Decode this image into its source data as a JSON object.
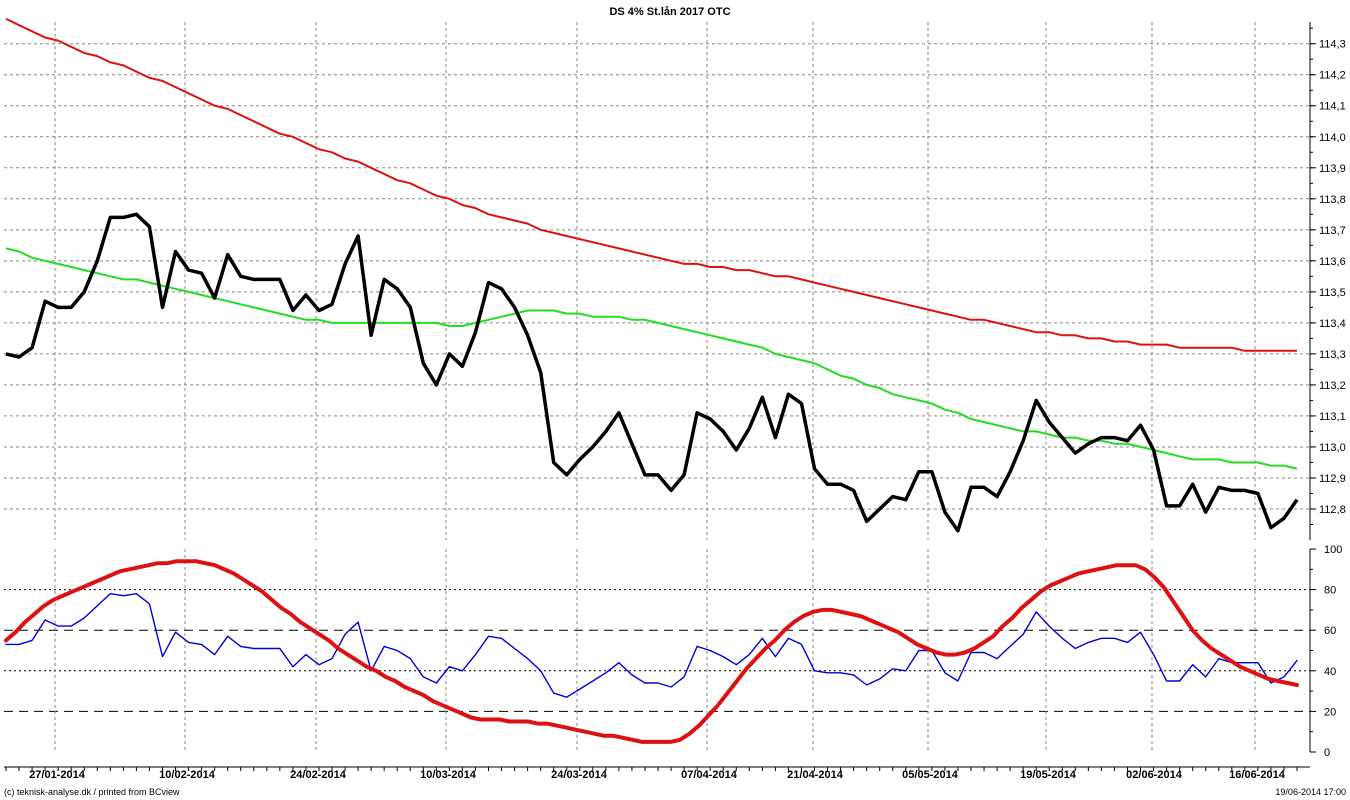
{
  "chart_data": [
    {
      "type": "line",
      "title": "DS 4% St.lån 2017 OTC",
      "ylim": [
        112.7,
        114.37
      ],
      "y_ticks": [
        "112,8",
        "112,9",
        "113,0",
        "113,1",
        "113,2",
        "113,3",
        "113,4",
        "113,5",
        "113,6",
        "113,7",
        "113,8",
        "113,9",
        "114,0",
        "114,1",
        "114,2",
        "114,3"
      ],
      "x_labels": [
        "27/01-2014",
        "10/02-2014",
        "24/02-2014",
        "10/03-2014",
        "24/03-2014",
        "07/04-2014",
        "21/04-2014",
        "05/05-2014",
        "19/05-2014",
        "02/06-2014",
        "16/06-2014"
      ],
      "grid": "dotted",
      "series": [
        {
          "color": "#000000",
          "values": [
            113.3,
            113.29,
            113.32,
            113.47,
            113.45,
            113.45,
            113.5,
            113.6,
            113.74,
            113.74,
            113.75,
            113.71,
            113.45,
            113.63,
            113.57,
            113.56,
            113.48,
            113.62,
            113.55,
            113.54,
            113.54,
            113.54,
            113.44,
            113.49,
            113.44,
            113.46,
            113.59,
            113.68,
            113.36,
            113.54,
            113.51,
            113.45,
            113.27,
            113.2,
            113.3,
            113.26,
            113.37,
            113.53,
            113.51,
            113.45,
            113.36,
            113.24,
            112.95,
            112.91,
            112.96,
            113.0,
            113.05,
            113.11,
            113.01,
            112.91,
            112.91,
            112.86,
            112.91,
            113.11,
            113.09,
            113.05,
            112.99,
            113.06,
            113.16,
            113.03,
            113.17,
            113.14,
            112.93,
            112.88,
            112.88,
            112.86,
            112.76,
            112.8,
            112.84,
            112.83,
            112.92,
            112.92,
            112.79,
            112.73,
            112.87,
            112.87,
            112.84,
            112.92,
            113.02,
            113.15,
            113.08,
            113.03,
            112.98,
            113.01,
            113.03,
            113.03,
            113.02,
            113.07,
            112.99,
            112.81,
            112.81,
            112.88,
            112.79,
            112.87,
            112.86,
            112.86,
            112.85,
            112.74,
            112.77,
            112.83
          ]
        },
        {
          "color": "#22dd22",
          "values": [
            113.64,
            113.63,
            113.61,
            113.6,
            113.59,
            113.58,
            113.57,
            113.56,
            113.55,
            113.54,
            113.54,
            113.53,
            113.52,
            113.51,
            113.5,
            113.49,
            113.48,
            113.47,
            113.46,
            113.45,
            113.44,
            113.43,
            113.42,
            113.41,
            113.41,
            113.4,
            113.4,
            113.4,
            113.4,
            113.4,
            113.4,
            113.4,
            113.4,
            113.4,
            113.39,
            113.39,
            113.4,
            113.41,
            113.42,
            113.43,
            113.44,
            113.44,
            113.44,
            113.43,
            113.43,
            113.42,
            113.42,
            113.42,
            113.41,
            113.41,
            113.4,
            113.39,
            113.38,
            113.37,
            113.36,
            113.35,
            113.34,
            113.33,
            113.32,
            113.3,
            113.29,
            113.28,
            113.27,
            113.25,
            113.23,
            113.22,
            113.2,
            113.19,
            113.17,
            113.16,
            113.15,
            113.14,
            113.12,
            113.11,
            113.09,
            113.08,
            113.07,
            113.06,
            113.05,
            113.05,
            113.04,
            113.03,
            113.03,
            113.02,
            113.02,
            113.01,
            113.01,
            113.0,
            112.99,
            112.98,
            112.97,
            112.96,
            112.96,
            112.96,
            112.95,
            112.95,
            112.95,
            112.94,
            112.94,
            112.93
          ]
        },
        {
          "color": "#dd1111",
          "values": [
            114.38,
            114.36,
            114.34,
            114.32,
            114.31,
            114.29,
            114.27,
            114.26,
            114.24,
            114.23,
            114.21,
            114.19,
            114.18,
            114.16,
            114.14,
            114.12,
            114.1,
            114.09,
            114.07,
            114.05,
            114.03,
            114.01,
            114.0,
            113.98,
            113.96,
            113.95,
            113.93,
            113.92,
            113.9,
            113.88,
            113.86,
            113.85,
            113.83,
            113.81,
            113.8,
            113.78,
            113.77,
            113.75,
            113.74,
            113.73,
            113.72,
            113.7,
            113.69,
            113.68,
            113.67,
            113.66,
            113.65,
            113.64,
            113.63,
            113.62,
            113.61,
            113.6,
            113.59,
            113.59,
            113.58,
            113.58,
            113.57,
            113.57,
            113.56,
            113.55,
            113.55,
            113.54,
            113.53,
            113.52,
            113.51,
            113.5,
            113.49,
            113.48,
            113.47,
            113.46,
            113.45,
            113.44,
            113.43,
            113.42,
            113.41,
            113.41,
            113.4,
            113.39,
            113.38,
            113.37,
            113.37,
            113.36,
            113.36,
            113.35,
            113.35,
            113.34,
            113.34,
            113.33,
            113.33,
            113.33,
            113.32,
            113.32,
            113.32,
            113.32,
            113.32,
            113.31,
            113.31,
            113.31,
            113.31,
            113.31
          ]
        }
      ]
    },
    {
      "type": "line",
      "ylim": [
        0,
        100
      ],
      "y_ticks": [
        "0",
        "20",
        "40",
        "60",
        "80",
        "100"
      ],
      "reference_lines": [
        {
          "value": 20,
          "style": "dashed"
        },
        {
          "value": 40,
          "style": "dotted"
        },
        {
          "value": 60,
          "style": "dashed"
        },
        {
          "value": 80,
          "style": "dotted"
        }
      ],
      "series": [
        {
          "color": "#0000dd",
          "values": [
            53,
            53,
            55,
            65,
            62,
            62,
            66,
            72,
            78,
            77,
            78,
            73,
            47,
            59,
            54,
            53,
            48,
            57,
            52,
            51,
            51,
            51,
            42,
            48,
            43,
            46,
            58,
            64,
            40,
            52,
            50,
            46,
            37,
            34,
            42,
            40,
            48,
            57,
            56,
            51,
            46,
            40,
            29,
            27,
            31,
            35,
            39,
            44,
            38,
            34,
            34,
            32,
            37,
            52,
            50,
            47,
            43,
            48,
            56,
            47,
            56,
            53,
            40,
            39,
            39,
            38,
            33,
            36,
            41,
            40,
            50,
            50,
            39,
            35,
            49,
            49,
            46,
            52,
            58,
            69,
            62,
            56,
            51,
            54,
            56,
            56,
            54,
            59,
            48,
            35,
            35,
            43,
            37,
            46,
            44,
            44,
            44,
            34,
            37,
            45
          ]
        },
        {
          "color": "#dd1111",
          "values": [
            55,
            59,
            64,
            68,
            72,
            75,
            77,
            79,
            81,
            83,
            85,
            87,
            89,
            90,
            91,
            92,
            93,
            93,
            94,
            94,
            94,
            93,
            92,
            90,
            88,
            85,
            82,
            79,
            75,
            71,
            68,
            64,
            61,
            58,
            55,
            51,
            48,
            45,
            42,
            40,
            37,
            35,
            32,
            30,
            28,
            25,
            23,
            21,
            19,
            17,
            16,
            16,
            16,
            15,
            15,
            15,
            14,
            14,
            13,
            12,
            11,
            10,
            9,
            8,
            8,
            7,
            6,
            5,
            5,
            5,
            5,
            6,
            9,
            13,
            18,
            23,
            29,
            35,
            41,
            46,
            51,
            55,
            60,
            64,
            67,
            69,
            70,
            70,
            69,
            68,
            67,
            65,
            63,
            61,
            59,
            56,
            53,
            51,
            49,
            48,
            48,
            49,
            51,
            54,
            57,
            62,
            66,
            71,
            75,
            79,
            82,
            84,
            86,
            88,
            89,
            90,
            91,
            92,
            92,
            92,
            90,
            86,
            81,
            74,
            67,
            60,
            55,
            51,
            48,
            45,
            42,
            40,
            38,
            36,
            35,
            34,
            33
          ]
        }
      ]
    }
  ],
  "footer": {
    "left": "(c) teknisk-analyse.dk / printed from BCview",
    "right": "19/06-2014 17:00"
  }
}
